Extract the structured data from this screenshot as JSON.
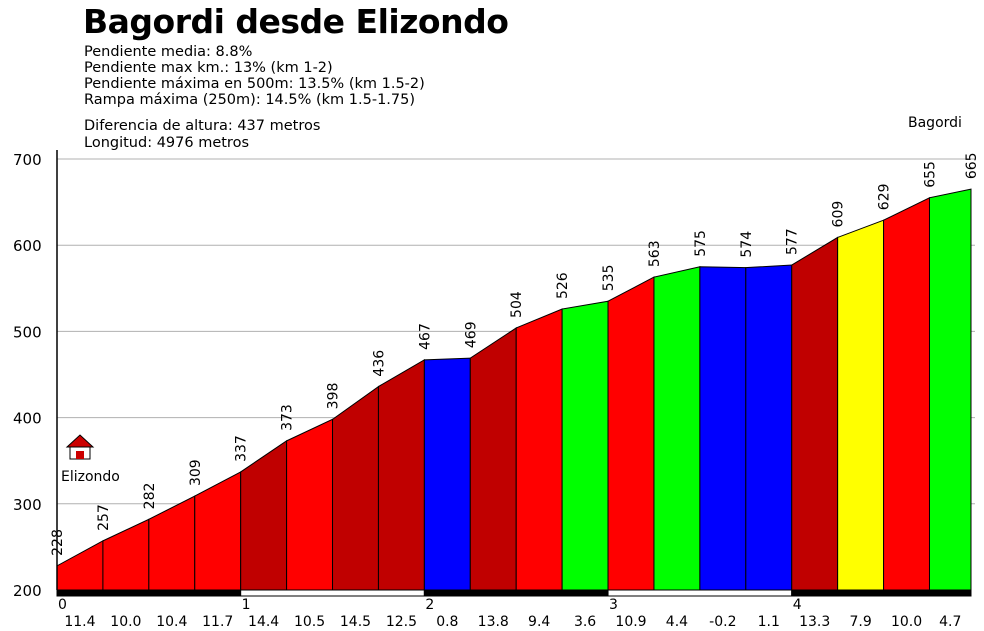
{
  "chart_data": {
    "type": "area",
    "title": "Bagordi desde Elizondo",
    "stats": [
      "Pendiente media: 8.8%",
      "Pendiente max km.: 13% (km 1-2)",
      "Pendiente máxima en 500m: 13.5% (km 1.5-2)",
      "Rampa máxima (250m): 14.5% (km 1.5-1.75)"
    ],
    "stats2": [
      "Diferencia de altura: 437 metros",
      "Longitud: 4976 metros"
    ],
    "start_label": "Elizondo",
    "end_label": "Bagordi",
    "ylim": [
      200,
      700
    ],
    "yticks": [
      200,
      300,
      400,
      500,
      600,
      700
    ],
    "xlim": [
      0,
      4.976
    ],
    "km_labels": [
      "0",
      "1",
      "2",
      "3",
      "4"
    ],
    "x": [
      0,
      0.25,
      0.5,
      0.75,
      1.0,
      1.25,
      1.5,
      1.75,
      2.0,
      2.25,
      2.5,
      2.75,
      3.0,
      3.25,
      3.5,
      3.75,
      4.0,
      4.25,
      4.5,
      4.75,
      4.976
    ],
    "elevation": [
      228,
      257,
      282,
      309,
      337,
      373,
      398,
      436,
      467,
      469,
      504,
      526,
      535,
      563,
      575,
      574,
      577,
      609,
      629,
      655,
      665
    ],
    "segment_gradients": [
      "11.4",
      "10.0",
      "10.4",
      "11.7",
      "14.4",
      "10.5",
      "14.5",
      "12.5",
      "0.8",
      "13.8",
      "9.4",
      "3.6",
      "10.9",
      "4.4",
      "-0.2",
      "1.1",
      "13.3",
      "7.9",
      "10.0",
      "4.7"
    ],
    "segment_colors": [
      "#ff0000",
      "#ff0000",
      "#ff0000",
      "#ff0000",
      "#c00000",
      "#ff0000",
      "#c00000",
      "#c00000",
      "#0000ff",
      "#c00000",
      "#ff0000",
      "#00ff00",
      "#ff0000",
      "#00ff00",
      "#0000ff",
      "#0000ff",
      "#c00000",
      "#ffff00",
      "#ff0000",
      "#00ff00"
    ],
    "grid": true
  }
}
